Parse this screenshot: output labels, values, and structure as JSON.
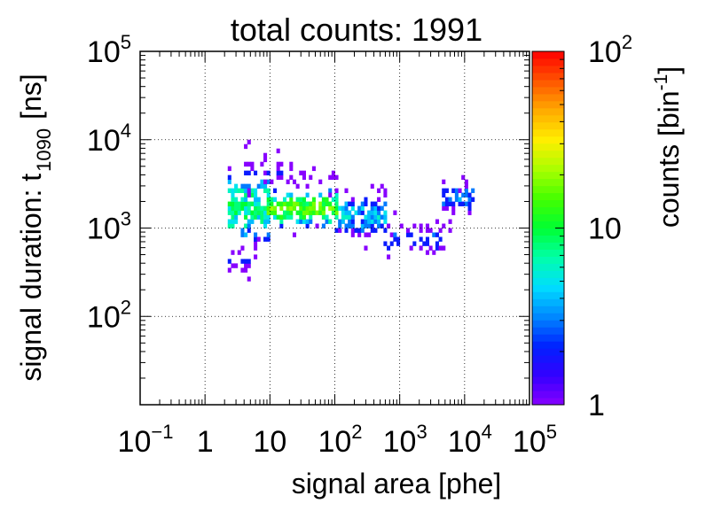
{
  "chart_data": {
    "type": "heatmap",
    "title": "total counts: 1991",
    "xlabel": "signal area [phe]",
    "ylabel": "signal duration: t",
    "ylabel_subscript": "1090",
    "ylabel_unit": "[ns]",
    "zlabel": "counts [bin",
    "zlabel_superscript": "-1",
    "zlabel_close": "]",
    "x_scale": "log",
    "y_scale": "log",
    "z_scale": "log",
    "xlim": [
      0.1,
      100000
    ],
    "ylim": [
      10,
      100000
    ],
    "zlim": [
      1,
      100
    ],
    "grid": true,
    "bins_per_decade": 20,
    "x_ticks": [
      {
        "value": 0.1,
        "base": "10",
        "exp": "−1"
      },
      {
        "value": 1,
        "base": "1",
        "exp": ""
      },
      {
        "value": 10,
        "base": "10",
        "exp": ""
      },
      {
        "value": 100,
        "base": "10",
        "exp": "2"
      },
      {
        "value": 1000,
        "base": "10",
        "exp": "3"
      },
      {
        "value": 10000,
        "base": "10",
        "exp": "4"
      },
      {
        "value": 100000,
        "base": "10",
        "exp": "5"
      }
    ],
    "y_ticks": [
      {
        "value": 100,
        "base": "10",
        "exp": "2"
      },
      {
        "value": 1000,
        "base": "10",
        "exp": "3"
      },
      {
        "value": 10000,
        "base": "10",
        "exp": "4"
      },
      {
        "value": 100000,
        "base": "10",
        "exp": "5"
      }
    ],
    "z_ticks": [
      {
        "value": 1,
        "base": "1",
        "exp": ""
      },
      {
        "value": 10,
        "base": "10",
        "exp": ""
      },
      {
        "value": 100,
        "base": "10",
        "exp": "2"
      }
    ],
    "colormap": [
      "#8800ff",
      "#3300ff",
      "#0022ff",
      "#0088ff",
      "#00ddff",
      "#00ffaa",
      "#00ff33",
      "#44ff00",
      "#aaff00",
      "#ffee00",
      "#ffaa00",
      "#ff5500",
      "#ff0000"
    ],
    "bands": [
      {
        "x_range": [
          2.4,
          9
        ],
        "y_center": 1500,
        "y_sigma": 0.2,
        "density": 0.85,
        "peak": 12
      },
      {
        "x_range": [
          9,
          110
        ],
        "y_center": 1600,
        "y_sigma": 0.1,
        "density": 0.9,
        "peak": 22
      },
      {
        "x_range": [
          110,
          600
        ],
        "y_center": 1300,
        "y_sigma": 0.14,
        "density": 0.75,
        "peak": 6
      },
      {
        "x_range": [
          600,
          5000
        ],
        "y_center": 700,
        "y_sigma": 0.1,
        "density": 0.55,
        "peak": 3
      },
      {
        "x_range": [
          5000,
          13000
        ],
        "y_center": 2000,
        "y_sigma": 0.12,
        "density": 0.65,
        "peak": 4
      },
      {
        "x_range": [
          2.4,
          5
        ],
        "y_center": 400,
        "y_sigma": 0.08,
        "density": 0.45,
        "peak": 2
      },
      {
        "x_range": [
          4,
          15
        ],
        "y_center": 4000,
        "y_sigma": 0.12,
        "density": 0.45,
        "peak": 2
      },
      {
        "x_range": [
          20,
          140
        ],
        "y_center": 3500,
        "y_sigma": 0.1,
        "density": 0.25,
        "peak": 1
      }
    ]
  }
}
